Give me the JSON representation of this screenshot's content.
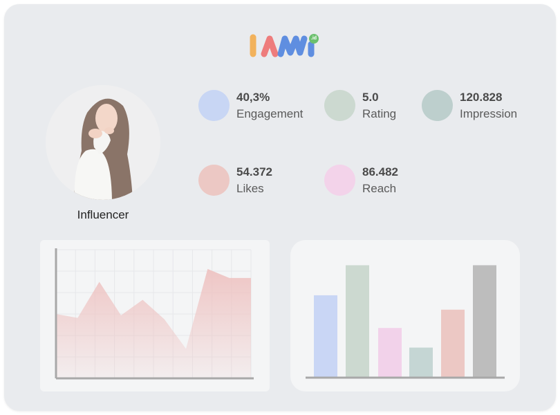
{
  "logo": {
    "name": "IAM.id",
    "badge": ".id"
  },
  "profile": {
    "label": "Influencer"
  },
  "stats": [
    {
      "value": "40,3%",
      "label": "Engagement",
      "color": "#c8d6f4"
    },
    {
      "value": "5.0",
      "label": "Rating",
      "color": "#ccd9d0"
    },
    {
      "value": "120.828",
      "label": "Impression",
      "color": "#bdcfcd"
    },
    {
      "value": "54.372",
      "label": "Likes",
      "color": "#ecc8c4"
    },
    {
      "value": "86.482",
      "label": "Reach",
      "color": "#f3d3ea"
    }
  ],
  "chart_data": [
    {
      "type": "area",
      "title": "",
      "xlabel": "",
      "ylabel": "",
      "x": [
        0,
        1,
        2,
        3,
        4,
        5,
        6,
        7,
        8,
        9
      ],
      "values": [
        50,
        47,
        75,
        49,
        61,
        46,
        23,
        85,
        78,
        78
      ],
      "ylim": [
        0,
        100
      ],
      "grid": true,
      "color": "#eec3c2"
    },
    {
      "type": "bar",
      "title": "",
      "xlabel": "",
      "ylabel": "",
      "categories": [
        "",
        "",
        "",
        "",
        "",
        ""
      ],
      "values": [
        63,
        86,
        38,
        23,
        52,
        86
      ],
      "colors": [
        "#c9d6f5",
        "#ccd9d0",
        "#f2d2ea",
        "#c5d6d4",
        "#ecc8c4",
        "#bdbdbd"
      ],
      "ylim": [
        0,
        100
      ],
      "grid": false
    }
  ]
}
